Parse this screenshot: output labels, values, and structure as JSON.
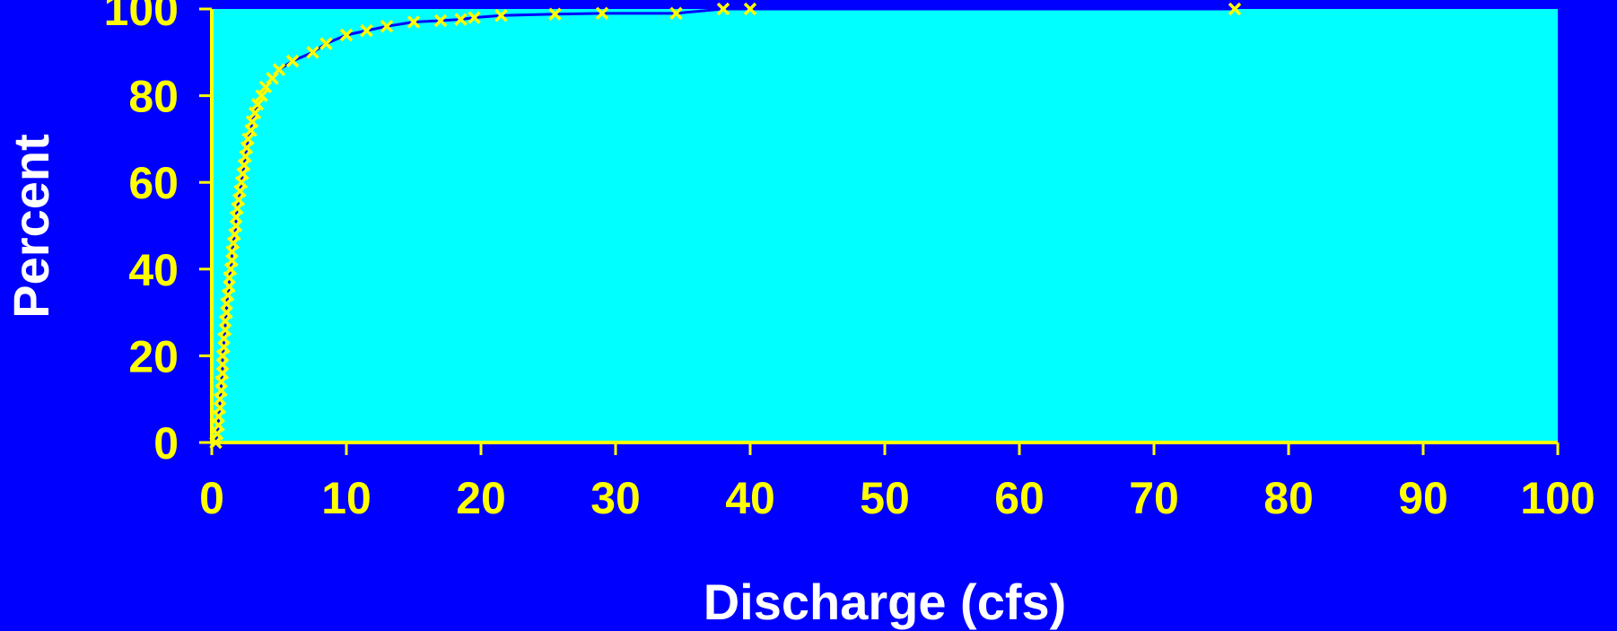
{
  "colors": {
    "background": "#0000FF",
    "plot_area": "#00FFFF",
    "axis": "#FFFF00",
    "tick_labels": "#FFFF00",
    "axis_titles": "#FFFFFF",
    "line": "#0000FF",
    "markers": "#FFFF00"
  },
  "chart_data": {
    "type": "line",
    "title": "",
    "xlabel": "Discharge (cfs)",
    "ylabel": "Percent",
    "xlim": [
      0,
      100
    ],
    "ylim": [
      0,
      100
    ],
    "xticks": [
      0,
      10,
      20,
      30,
      40,
      50,
      60,
      70,
      80,
      90,
      100
    ],
    "yticks": [
      0,
      20,
      40,
      60,
      80,
      100
    ],
    "grid": false,
    "legend": "none",
    "series": [
      {
        "marker": "x",
        "points": [
          [
            0.3,
            0
          ],
          [
            0.4,
            2
          ],
          [
            0.5,
            4
          ],
          [
            0.5,
            6
          ],
          [
            0.6,
            8
          ],
          [
            0.6,
            10
          ],
          [
            0.7,
            12
          ],
          [
            0.7,
            14
          ],
          [
            0.8,
            16
          ],
          [
            0.8,
            18
          ],
          [
            0.8,
            20
          ],
          [
            0.9,
            22
          ],
          [
            0.9,
            24
          ],
          [
            1.0,
            26
          ],
          [
            1.0,
            28
          ],
          [
            1.1,
            30
          ],
          [
            1.1,
            32
          ],
          [
            1.2,
            34
          ],
          [
            1.3,
            36
          ],
          [
            1.3,
            38
          ],
          [
            1.4,
            40
          ],
          [
            1.5,
            42
          ],
          [
            1.5,
            44
          ],
          [
            1.6,
            46
          ],
          [
            1.7,
            48
          ],
          [
            1.8,
            50
          ],
          [
            1.8,
            52
          ],
          [
            1.9,
            54
          ],
          [
            2.0,
            56
          ],
          [
            2.1,
            58
          ],
          [
            2.2,
            60
          ],
          [
            2.3,
            62
          ],
          [
            2.4,
            64
          ],
          [
            2.5,
            66
          ],
          [
            2.6,
            68
          ],
          [
            2.7,
            70
          ],
          [
            2.9,
            72
          ],
          [
            3.0,
            74
          ],
          [
            3.2,
            76
          ],
          [
            3.4,
            78
          ],
          [
            3.7,
            80
          ],
          [
            4.0,
            82
          ],
          [
            4.5,
            84
          ],
          [
            5.0,
            86
          ],
          [
            6.0,
            88
          ],
          [
            7.5,
            90
          ],
          [
            8.5,
            92
          ],
          [
            10.0,
            94
          ],
          [
            11.5,
            95
          ],
          [
            13.0,
            96
          ],
          [
            15.0,
            97
          ],
          [
            17.0,
            97.3
          ],
          [
            18.5,
            97.6
          ],
          [
            19.5,
            98
          ],
          [
            21.5,
            98.5
          ],
          [
            25.5,
            98.8
          ],
          [
            29.0,
            99
          ],
          [
            34.5,
            99
          ],
          [
            38.0,
            100
          ],
          [
            40.0,
            100
          ],
          [
            76.0,
            100
          ]
        ]
      }
    ]
  }
}
